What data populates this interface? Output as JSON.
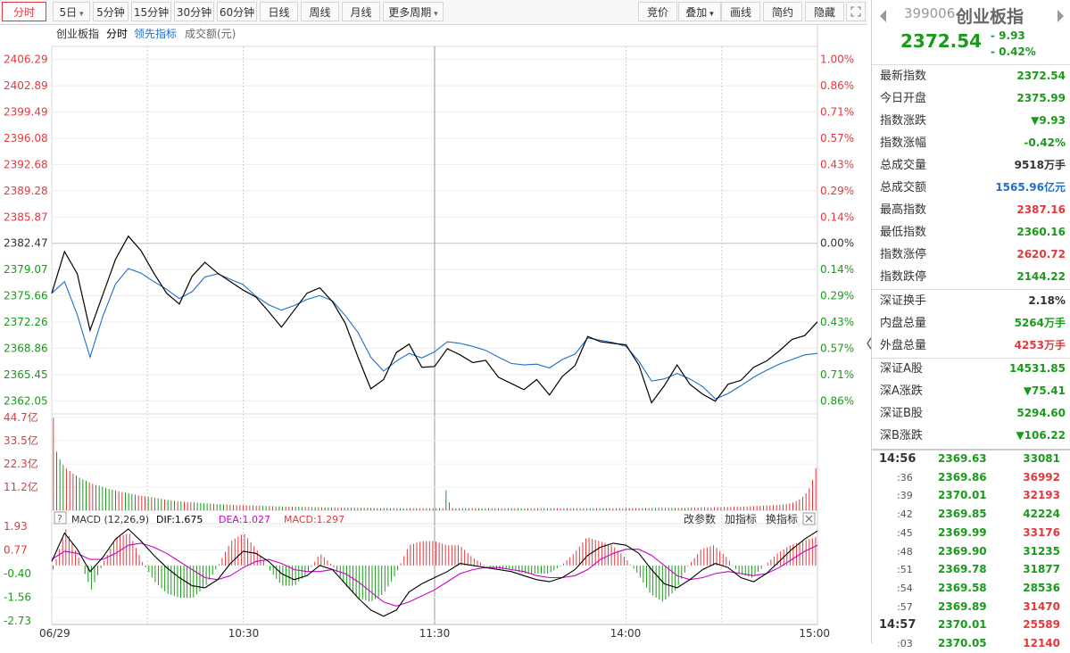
{
  "toolbar": {
    "periods": [
      {
        "label": "分时",
        "active": true
      },
      {
        "label": "5日",
        "dropdown": true
      },
      {
        "label": "5分钟"
      },
      {
        "label": "15分钟"
      },
      {
        "label": "30分钟"
      },
      {
        "label": "60分钟"
      },
      {
        "label": "日线"
      },
      {
        "label": "周线"
      },
      {
        "label": "月线"
      },
      {
        "label": "更多周期",
        "dropdown": true
      }
    ],
    "actions": [
      "竞价",
      "叠加",
      "画线",
      "简约",
      "隐藏"
    ],
    "fullscreen_icon": "expand-icon"
  },
  "legend": {
    "name": "创业板指",
    "mode": "分时",
    "lead": "领先指标",
    "volume": "成交额(元)"
  },
  "colors": {
    "up": "#e4393c",
    "down": "#1a9a1a",
    "price_line": "#000000",
    "avg_line": "#1e6fc7",
    "dif": "#000000",
    "dea": "#cc00cc"
  },
  "macd_header": {
    "help": "?",
    "name": "MACD (12,26,9)",
    "dif": "DIF:1.675",
    "dea": "DEA:1.027",
    "macd": "MACD:1.297",
    "actions": [
      "改参数",
      "加指标",
      "换指标"
    ]
  },
  "chart_data": [
    {
      "type": "line",
      "title": "",
      "price_ticks": [
        "2406.29",
        "2402.89",
        "2399.49",
        "2396.08",
        "2392.68",
        "2389.28",
        "2385.87",
        "2382.47",
        "2379.07",
        "2375.66",
        "2372.26",
        "2368.86",
        "2365.45",
        "2362.05"
      ],
      "pct_ticks": [
        "1.00%",
        "0.86%",
        "0.71%",
        "0.57%",
        "0.43%",
        "0.29%",
        "0.14%",
        "0.00%",
        "0.14%",
        "0.29%",
        "0.43%",
        "0.57%",
        "0.71%",
        "0.86%"
      ],
      "prev_close": 2382.47,
      "ylim": [
        2360.35,
        2407.99
      ],
      "x_labels": [
        "06/29",
        "10:30",
        "11:30",
        "14:00",
        "15:00"
      ],
      "x": [
        0,
        4,
        8,
        12,
        16,
        20,
        24,
        28,
        32,
        36,
        40,
        44,
        48,
        52,
        56,
        60,
        64,
        68,
        72,
        76,
        80,
        84,
        88,
        92,
        96,
        100,
        104,
        108,
        112,
        116,
        120,
        124,
        128,
        132,
        136,
        140,
        144,
        148,
        152,
        156,
        160,
        164,
        168,
        172,
        176,
        180,
        184,
        188,
        192,
        196,
        200,
        204,
        208,
        212,
        216,
        220,
        224,
        228,
        232,
        236,
        240
      ],
      "series": [
        {
          "name": "price",
          "values": [
            2376.0,
            2381.4,
            2378.5,
            2371.2,
            2375.8,
            2380.4,
            2383.4,
            2381.5,
            2378.6,
            2376.0,
            2374.6,
            2378.2,
            2380.0,
            2378.6,
            2377.5,
            2376.4,
            2375.5,
            2373.6,
            2371.6,
            2373.8,
            2376.0,
            2376.7,
            2374.9,
            2372.1,
            2367.7,
            2363.6,
            2364.8,
            2368.3,
            2369.4,
            2366.4,
            2366.5,
            2368.8,
            2368.0,
            2367.0,
            2367.3,
            2365.1,
            2364.3,
            2363.5,
            2364.8,
            2362.8,
            2365.2,
            2366.6,
            2370.4,
            2369.7,
            2369.5,
            2369.3,
            2366.7,
            2361.8,
            2364.0,
            2366.7,
            2364.2,
            2362.9,
            2362.0,
            2364.2,
            2364.7,
            2366.4,
            2367.2,
            2368.5,
            2370.0,
            2370.5,
            2372.3
          ]
        },
        {
          "name": "avg",
          "values": [
            2376.0,
            2377.5,
            2373.2,
            2367.7,
            2373.0,
            2377.2,
            2379.2,
            2378.6,
            2377.5,
            2376.5,
            2375.3,
            2376.2,
            2378.1,
            2378.5,
            2377.8,
            2377.1,
            2375.6,
            2374.5,
            2373.8,
            2374.4,
            2375.2,
            2375.7,
            2375.0,
            2373.1,
            2370.9,
            2367.7,
            2365.9,
            2367.2,
            2368.2,
            2367.6,
            2368.4,
            2369.7,
            2369.5,
            2369.1,
            2368.6,
            2367.7,
            2366.9,
            2366.7,
            2366.8,
            2366.3,
            2367.4,
            2368.1,
            2370.2,
            2369.9,
            2369.6,
            2369.1,
            2367.2,
            2364.6,
            2364.9,
            2365.6,
            2364.9,
            2363.9,
            2362.3,
            2363.0,
            2364.0,
            2365.1,
            2366.0,
            2366.8,
            2367.4,
            2368.0,
            2368.2
          ]
        }
      ]
    },
    {
      "type": "bar",
      "title": "",
      "ylabel": "成交额",
      "y_ticks": [
        "44.7亿",
        "33.5亿",
        "22.3亿",
        "11.2亿"
      ],
      "ylim": [
        0,
        44.7
      ],
      "unit": "亿",
      "values": [
        44.5,
        28.2,
        24.6,
        21.8,
        20.2,
        18.9,
        17.6,
        16.8,
        15.7,
        14.9,
        14.2,
        13.4,
        12.8,
        12.2,
        11.9,
        11.4,
        10.8,
        10.3,
        9.9,
        9.5,
        9.2,
        8.8,
        8.5,
        8.2,
        7.9,
        7.5,
        7.2,
        6.9,
        6.7,
        6.5,
        6.3,
        6.0,
        5.8,
        5.5,
        5.2,
        5.0,
        4.8,
        4.6,
        4.4,
        4.3,
        4.2,
        4.0,
        3.9,
        3.8,
        3.6,
        3.5,
        3.4,
        3.3,
        3.2,
        3.1,
        3.0,
        2.9,
        2.9,
        2.8,
        2.7,
        2.6,
        2.5,
        2.5,
        2.4,
        2.4,
        2.3,
        2.3,
        2.2,
        2.2,
        2.1,
        2.1,
        2.0,
        2.0,
        1.9,
        1.9,
        1.8,
        1.8,
        1.8,
        1.7,
        1.7,
        1.7,
        1.6,
        1.6,
        1.6,
        1.5,
        1.5,
        1.5,
        1.5,
        1.4,
        1.4,
        1.4,
        1.4,
        1.3,
        1.3,
        1.3,
        1.3,
        1.3,
        1.2,
        1.2,
        1.2,
        1.2,
        1.2,
        1.2,
        1.1,
        1.1,
        1.1,
        1.1,
        1.1,
        1.1,
        1.1,
        1.0,
        1.0,
        1.0,
        1.0,
        1.0,
        1.0,
        1.0,
        1.0,
        1.0,
        1.0,
        1.0,
        1.0,
        1.0,
        1.0,
        1.0,
        9.6,
        3.8,
        1.2,
        1.0,
        1.0,
        1.0,
        1.0,
        1.1,
        1.1,
        1.0,
        1.0,
        1.0,
        1.0,
        1.0,
        1.0,
        1.0,
        1.0,
        1.0,
        1.0,
        1.0,
        1.0,
        1.0,
        1.0,
        1.0,
        1.0,
        1.0,
        1.0,
        1.0,
        1.0,
        1.0,
        1.0,
        1.0,
        1.0,
        1.0,
        1.0,
        1.0,
        1.0,
        1.0,
        1.0,
        1.0,
        1.0,
        1.0,
        1.0,
        1.0,
        1.0,
        1.0,
        1.0,
        1.0,
        1.0,
        1.0,
        1.0,
        1.0,
        1.0,
        1.0,
        1.0,
        1.1,
        1.1,
        1.1,
        1.1,
        1.1,
        1.1,
        1.1,
        1.1,
        1.2,
        1.2,
        1.2,
        1.2,
        1.2,
        1.2,
        1.2,
        1.2,
        1.2,
        1.2,
        1.2,
        1.3,
        1.3,
        1.3,
        1.3,
        1.4,
        1.4,
        1.4,
        1.4,
        1.5,
        1.5,
        1.5,
        1.6,
        1.6,
        1.6,
        1.7,
        1.7,
        1.8,
        1.8,
        1.9,
        1.9,
        2.0,
        2.1,
        2.1,
        2.2,
        2.2,
        2.3,
        2.4,
        2.5,
        2.6,
        2.8,
        3.0,
        3.3,
        3.7,
        4.4,
        5.3,
        6.5,
        8.2,
        10.6,
        14.6,
        20.3
      ],
      "up": [
        1,
        0,
        0,
        0,
        1,
        1,
        1,
        0,
        0,
        0,
        0,
        1,
        1,
        0,
        0,
        0,
        0,
        0,
        0,
        1,
        1,
        1,
        0,
        0,
        0,
        0,
        1,
        1,
        1,
        0,
        1,
        1,
        0,
        0,
        1,
        0,
        0,
        0,
        1,
        0,
        1,
        1,
        1,
        0,
        0,
        0,
        0,
        0,
        1,
        1,
        0,
        0,
        0,
        1,
        1,
        1,
        1,
        1,
        1,
        1,
        1,
        0,
        1,
        1,
        0,
        0,
        1,
        0,
        1,
        0,
        0,
        1,
        1,
        0,
        1,
        0,
        0,
        1,
        1,
        1,
        0,
        0,
        1,
        0,
        0,
        1,
        0,
        1,
        1,
        0,
        0,
        1,
        0,
        0,
        1,
        0,
        1,
        1,
        0,
        1,
        0,
        1,
        0,
        0,
        1,
        1,
        0,
        0,
        1,
        0,
        1,
        0,
        1,
        1,
        0,
        0,
        1,
        0,
        0,
        1,
        0,
        1,
        1,
        0,
        1,
        0,
        0,
        1,
        1,
        1,
        0,
        0,
        1,
        0,
        0,
        1,
        0,
        1,
        1,
        0,
        0,
        1,
        0,
        0,
        1,
        0,
        1,
        1,
        0,
        1,
        0,
        1,
        0,
        0,
        1,
        1,
        0,
        0,
        1,
        0,
        1,
        0,
        1,
        1,
        0,
        0,
        1,
        0,
        0,
        1,
        0,
        1,
        1,
        0,
        1,
        0,
        0,
        1,
        1,
        1,
        0,
        0,
        1,
        0,
        0,
        1,
        0,
        1,
        1,
        0,
        0,
        1,
        0,
        0,
        1,
        0,
        1,
        1,
        0,
        1,
        1,
        1,
        1,
        1,
        1,
        1,
        1,
        1,
        1,
        1,
        1,
        1,
        1,
        1,
        1,
        1,
        1,
        1,
        1,
        1,
        1,
        1,
        1,
        1,
        1,
        1,
        1,
        1,
        1,
        1,
        1,
        1,
        1,
        1
      ]
    },
    {
      "type": "line",
      "title": "MACD (12,26,9)",
      "y_ticks": [
        "1.93",
        "0.77",
        "-0.40",
        "-1.56",
        "-2.73"
      ],
      "ylim": [
        -2.73,
        1.93
      ],
      "x": [
        0,
        4,
        8,
        12,
        16,
        20,
        24,
        28,
        32,
        36,
        40,
        44,
        48,
        52,
        56,
        60,
        64,
        68,
        72,
        76,
        80,
        84,
        88,
        92,
        96,
        100,
        104,
        108,
        112,
        116,
        120,
        124,
        128,
        132,
        136,
        140,
        144,
        148,
        152,
        156,
        160,
        164,
        168,
        172,
        176,
        180,
        184,
        188,
        192,
        196,
        200,
        204,
        208,
        212,
        216,
        220,
        224,
        228,
        232,
        236,
        240
      ],
      "series": [
        {
          "name": "DIF",
          "values": [
            0.2,
            1.6,
            0.8,
            -0.3,
            0.4,
            1.3,
            1.8,
            1.2,
            0.5,
            -0.1,
            -0.6,
            -1.0,
            -1.1,
            -0.7,
            0.1,
            0.7,
            0.6,
            0.2,
            -0.4,
            -0.7,
            -0.5,
            0.0,
            -0.2,
            -0.9,
            -1.6,
            -2.2,
            -2.5,
            -2.2,
            -1.3,
            -0.9,
            -0.6,
            -0.3,
            0.1,
            0.0,
            -0.1,
            -0.2,
            -0.3,
            -0.5,
            -0.7,
            -0.8,
            -0.6,
            -0.2,
            0.5,
            0.9,
            1.1,
            1.0,
            0.6,
            -0.2,
            -0.9,
            -1.1,
            -0.7,
            -0.2,
            0.1,
            -0.1,
            -0.6,
            -0.8,
            -0.4,
            0.2,
            0.8,
            1.3,
            1.7
          ]
        },
        {
          "name": "DEA",
          "values": [
            0.3,
            0.7,
            0.6,
            0.3,
            0.3,
            0.6,
            1.0,
            1.1,
            0.9,
            0.6,
            0.2,
            -0.2,
            -0.6,
            -0.7,
            -0.5,
            -0.1,
            0.2,
            0.3,
            0.1,
            -0.2,
            -0.3,
            -0.3,
            -0.2,
            -0.4,
            -0.8,
            -1.3,
            -1.8,
            -2.0,
            -1.8,
            -1.5,
            -1.2,
            -0.8,
            -0.4,
            -0.2,
            -0.1,
            -0.1,
            -0.2,
            -0.3,
            -0.5,
            -0.6,
            -0.6,
            -0.5,
            -0.2,
            0.3,
            0.6,
            0.8,
            0.8,
            0.5,
            0.0,
            -0.5,
            -0.7,
            -0.6,
            -0.4,
            -0.3,
            -0.4,
            -0.5,
            -0.4,
            -0.1,
            0.3,
            0.7,
            1.0
          ]
        }
      ],
      "histogram": [
        -0.2,
        1.8,
        0.4,
        -1.2,
        0.2,
        1.4,
        1.6,
        0.2,
        -0.8,
        -1.4,
        -1.6,
        -1.6,
        -1.0,
        0.0,
        1.2,
        1.6,
        0.8,
        -0.2,
        -1.0,
        -1.0,
        -0.4,
        0.6,
        0.0,
        -1.0,
        -1.6,
        -1.8,
        -1.4,
        -0.4,
        1.0,
        1.2,
        1.2,
        1.0,
        1.0,
        0.4,
        0.0,
        -0.2,
        -0.2,
        -0.4,
        -0.4,
        -0.4,
        0.0,
        0.6,
        1.4,
        1.2,
        1.0,
        0.4,
        -0.4,
        -1.4,
        -1.8,
        -1.2,
        0.0,
        0.8,
        1.0,
        0.4,
        -0.4,
        -0.6,
        0.0,
        0.6,
        1.0,
        1.2,
        1.4
      ]
    }
  ],
  "quote": {
    "code": "399006",
    "name": "创业板指",
    "price": "2372.54",
    "change": "- 9.93",
    "change_pct": "- 0.42%",
    "stats": [
      {
        "label": "最新指数",
        "value": "2372.54",
        "color": "green"
      },
      {
        "label": "今日开盘",
        "value": "2375.99",
        "color": "green"
      },
      {
        "label": "指数涨跌",
        "value": "▼9.93",
        "color": "green"
      },
      {
        "label": "指数涨幅",
        "value": "-0.42%",
        "color": "green"
      },
      {
        "label": "总成交量",
        "value": "9518万手",
        "color": "default"
      },
      {
        "label": "总成交额",
        "value": "1565.96亿元",
        "color": "blue"
      },
      {
        "label": "最高指数",
        "value": "2387.16",
        "color": "red"
      },
      {
        "label": "最低指数",
        "value": "2360.16",
        "color": "green"
      },
      {
        "label": "指数涨停",
        "value": "2620.72",
        "color": "red"
      },
      {
        "label": "指数跌停",
        "value": "2144.22",
        "color": "green"
      }
    ],
    "stats2": [
      {
        "label": "深证换手",
        "value": "2.18%",
        "color": "default"
      },
      {
        "label": "内盘总量",
        "value": "5264万手",
        "color": "green"
      },
      {
        "label": "外盘总量",
        "value": "4253万手",
        "color": "red"
      }
    ],
    "stats3": [
      {
        "label": "深证A股",
        "value": "14531.85",
        "color": "green"
      },
      {
        "label": "深A涨跌",
        "value": "▼75.41",
        "color": "green"
      },
      {
        "label": "深证B股",
        "value": "5294.60",
        "color": "green"
      },
      {
        "label": "深B涨跌",
        "value": "▼106.22",
        "color": "green"
      }
    ],
    "ticks": [
      {
        "time": "14:56",
        "price": "2369.63",
        "vol": "33081",
        "color": "green"
      },
      {
        "time": ":36",
        "price": "2369.86",
        "vol": "36992",
        "color": "red"
      },
      {
        "time": ":39",
        "price": "2370.01",
        "vol": "32193",
        "color": "red"
      },
      {
        "time": ":42",
        "price": "2369.85",
        "vol": "42224",
        "color": "green"
      },
      {
        "time": ":45",
        "price": "2369.99",
        "vol": "33176",
        "color": "red"
      },
      {
        "time": ":48",
        "price": "2369.90",
        "vol": "31235",
        "color": "green"
      },
      {
        "time": ":51",
        "price": "2369.78",
        "vol": "31877",
        "color": "green"
      },
      {
        "time": ":54",
        "price": "2369.58",
        "vol": "28536",
        "color": "green"
      },
      {
        "time": ":57",
        "price": "2369.89",
        "vol": "31470",
        "color": "red"
      },
      {
        "time": "14:57",
        "price": "2370.01",
        "vol": "25589",
        "color": "red"
      },
      {
        "time": ":03",
        "price": "2370.05",
        "vol": "12140",
        "color": "red"
      }
    ]
  }
}
